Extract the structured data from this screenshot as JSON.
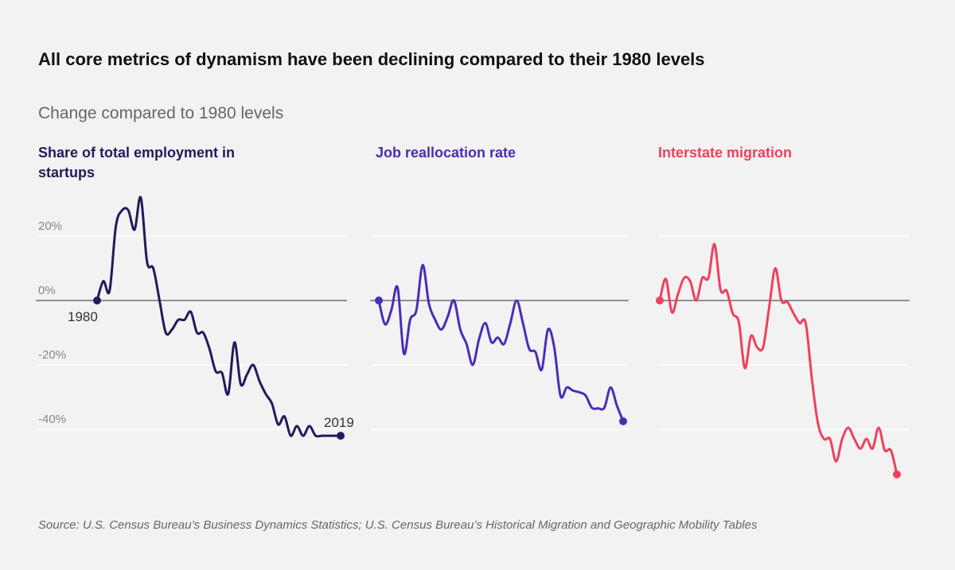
{
  "title": "All core metrics of dynamism have been declining compared to their 1980 levels",
  "subtitle": "Change compared to 1980 levels",
  "source": "Source: U.S. Census Bureau’s Business Dynamics Statistics; U.S. Census Bureau’s Historical Migration and Geographic Mobility Tables",
  "chart_data": [
    {
      "type": "line",
      "title": "Share of total employment in startups",
      "color": "#221a5c",
      "x": [
        1980,
        1981,
        1982,
        1983,
        1984,
        1985,
        1986,
        1987,
        1988,
        1989,
        1990,
        1991,
        1992,
        1993,
        1994,
        1995,
        1996,
        1997,
        1998,
        1999,
        2000,
        2001,
        2002,
        2003,
        2004,
        2005,
        2006,
        2007,
        2008,
        2009,
        2010,
        2011,
        2012,
        2013,
        2014,
        2015,
        2016,
        2017,
        2018,
        2019
      ],
      "y": [
        0,
        6,
        3,
        23,
        28,
        28,
        22,
        32,
        12,
        10,
        0,
        -10,
        -9,
        -6,
        -6,
        -3.5,
        -10,
        -10,
        -15,
        -22,
        -22.5,
        -29,
        -13,
        -26,
        -23,
        -20,
        -25,
        -29,
        -32,
        -38.5,
        -36,
        -42,
        -39,
        -42,
        -39,
        -42,
        -42,
        -42,
        -42,
        -42
      ],
      "yticks": [
        "20%",
        "0%",
        "-20%",
        "-40%"
      ],
      "ytick_values": [
        20,
        0,
        -20,
        -40
      ],
      "ylim": [
        -50,
        35
      ],
      "start_label": "1980",
      "end_label": "2019",
      "grid": true
    },
    {
      "type": "line",
      "title": "Job reallocation rate",
      "color": "#4a2db5",
      "x": [
        1980,
        1981,
        1982,
        1983,
        1984,
        1985,
        1986,
        1987,
        1988,
        1989,
        1990,
        1991,
        1992,
        1993,
        1994,
        1995,
        1996,
        1997,
        1998,
        1999,
        2000,
        2001,
        2002,
        2003,
        2004,
        2005,
        2006,
        2007,
        2008,
        2009,
        2010,
        2011,
        2012,
        2013,
        2014,
        2015,
        2016,
        2017,
        2018,
        2019
      ],
      "y": [
        0,
        -7.4,
        -3,
        4,
        -16.5,
        -6,
        -3,
        11,
        -1,
        -6,
        -9,
        -5,
        0,
        -9,
        -13.5,
        -20,
        -12,
        -7,
        -13,
        -11.5,
        -13.5,
        -7,
        0,
        -7,
        -15,
        -16,
        -21.5,
        -9,
        -14.5,
        -29.6,
        -27,
        -28,
        -28.5,
        -29.5,
        -33.3,
        -33.5,
        -33.3,
        -27,
        -32.6,
        -37.5
      ],
      "ylim": [
        -50,
        35
      ],
      "grid": true
    },
    {
      "type": "line",
      "title": "Interstate migration",
      "color": "#ef405e",
      "x": [
        1980,
        1981,
        1982,
        1983,
        1984,
        1985,
        1986,
        1987,
        1988,
        1989,
        1990,
        1991,
        1992,
        1993,
        1994,
        1995,
        1996,
        1997,
        1998,
        1999,
        2000,
        2001,
        2002,
        2003,
        2004,
        2005,
        2006,
        2007,
        2008,
        2009,
        2010,
        2011,
        2012,
        2013,
        2014,
        2015,
        2016,
        2017,
        2018,
        2019
      ],
      "y": [
        0,
        6.7,
        -3.7,
        2,
        7,
        6,
        0,
        7,
        7,
        17.5,
        3.3,
        3,
        -4,
        -6.7,
        -21,
        -11,
        -14.5,
        -14.5,
        -2,
        10,
        0,
        -0.5,
        -4,
        -7,
        -7,
        -24,
        -38,
        -43,
        -43,
        -50,
        -43,
        -39.5,
        -43,
        -46,
        -43,
        -46,
        -39.5,
        -46.5,
        -46.5,
        -54
      ],
      "ylim": [
        -60,
        35
      ],
      "grid": true
    }
  ]
}
